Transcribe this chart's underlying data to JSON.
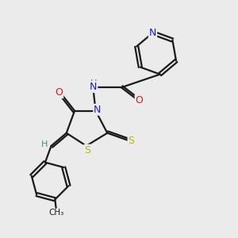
{
  "background_color": "#ebebeb",
  "bond_color": "#1a1a1a",
  "atom_colors": {
    "N": "#1a1acc",
    "O": "#cc1a1a",
    "S": "#b8b800",
    "H": "#4a8a8a",
    "C": "#1a1a1a"
  },
  "figsize": [
    3.0,
    3.0
  ],
  "dpi": 100
}
